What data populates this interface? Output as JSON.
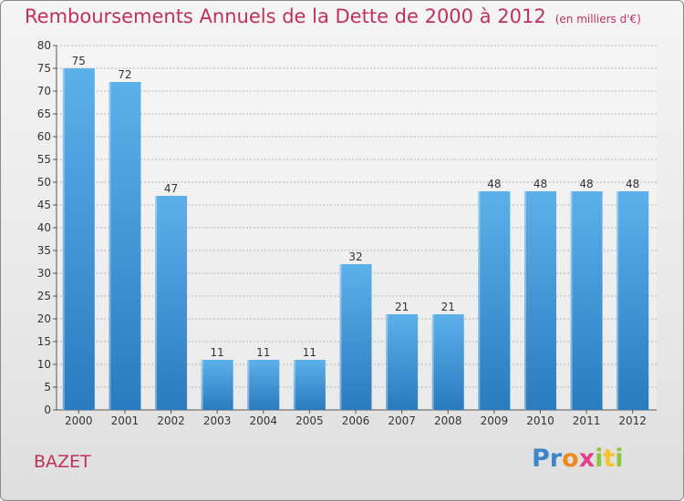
{
  "title": "Remboursements Annuels de la Dette de 2000 à 2012",
  "subtitle": "(en milliers d'€)",
  "commune": "BAZET",
  "logo": {
    "text": "Proxiti"
  },
  "colors": {
    "title": "#c0305a",
    "bar_light": "#5aaee8",
    "bar_dark": "#2a7cc0"
  },
  "chart_data": {
    "type": "bar",
    "title": "Remboursements Annuels de la Dette de 2000 à 2012",
    "xlabel": "",
    "ylabel": "",
    "categories": [
      "2000",
      "2001",
      "2002",
      "2003",
      "2004",
      "2005",
      "2006",
      "2007",
      "2008",
      "2009",
      "2010",
      "2011",
      "2012"
    ],
    "values": [
      75,
      72,
      47,
      11,
      11,
      11,
      32,
      21,
      21,
      48,
      48,
      48,
      48
    ],
    "ylim": [
      0,
      80
    ],
    "yticks": [
      0,
      5,
      10,
      15,
      20,
      25,
      30,
      35,
      40,
      45,
      50,
      55,
      60,
      65,
      70,
      75,
      80
    ],
    "grid": true,
    "data_labels": true
  }
}
